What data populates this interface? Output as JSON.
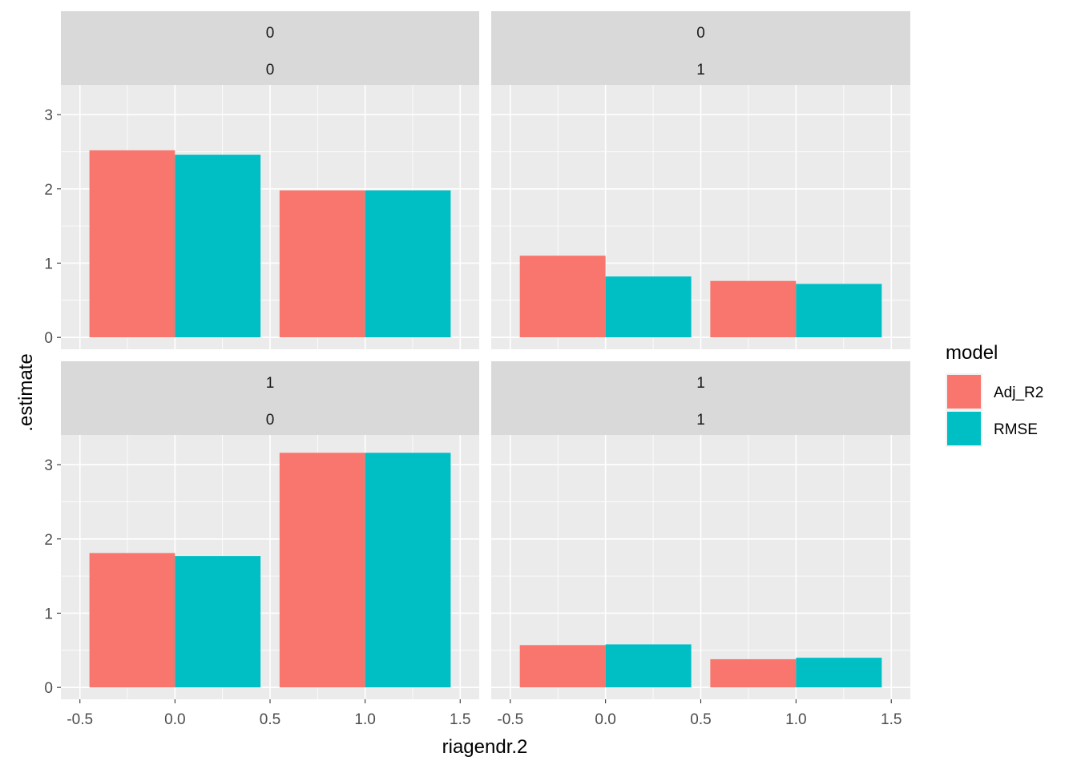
{
  "chart_data": {
    "type": "bar",
    "xlabel": "riagendr.2",
    "ylabel": ".estimate",
    "xlim": [
      -0.5,
      1.5
    ],
    "x_ticks": [
      "-0.5",
      "0.0",
      "0.5",
      "1.0",
      "1.5"
    ],
    "x_tick_values": [
      -0.5,
      0,
      0.5,
      1,
      1.5
    ],
    "ylim": [
      0,
      3.4
    ],
    "y_ticks": [
      "0",
      "1",
      "2",
      "3"
    ],
    "y_tick_values": [
      0,
      1,
      2,
      3
    ],
    "grid": true,
    "legend": {
      "title": "model",
      "position": "right",
      "entries": [
        {
          "name": "Adj_R2",
          "color": "#F8766D"
        },
        {
          "name": "RMSE",
          "color": "#00BFC4"
        }
      ]
    },
    "facets": [
      {
        "strip": [
          "0",
          "0"
        ],
        "x": [
          0,
          1
        ],
        "series": [
          {
            "name": "Adj_R2",
            "values": [
              2.52,
              1.98
            ]
          },
          {
            "name": "RMSE",
            "values": [
              2.46,
              1.98
            ]
          }
        ]
      },
      {
        "strip": [
          "0",
          "1"
        ],
        "x": [
          0,
          1
        ],
        "series": [
          {
            "name": "Adj_R2",
            "values": [
              1.1,
              0.76
            ]
          },
          {
            "name": "RMSE",
            "values": [
              0.82,
              0.72
            ]
          }
        ]
      },
      {
        "strip": [
          "1",
          "0"
        ],
        "x": [
          0,
          1
        ],
        "series": [
          {
            "name": "Adj_R2",
            "values": [
              1.81,
              3.16
            ]
          },
          {
            "name": "RMSE",
            "values": [
              1.77,
              3.16
            ]
          }
        ]
      },
      {
        "strip": [
          "1",
          "1"
        ],
        "x": [
          0,
          1
        ],
        "series": [
          {
            "name": "Adj_R2",
            "values": [
              0.57,
              0.38
            ]
          },
          {
            "name": "RMSE",
            "values": [
              0.58,
              0.4
            ]
          }
        ]
      }
    ]
  }
}
